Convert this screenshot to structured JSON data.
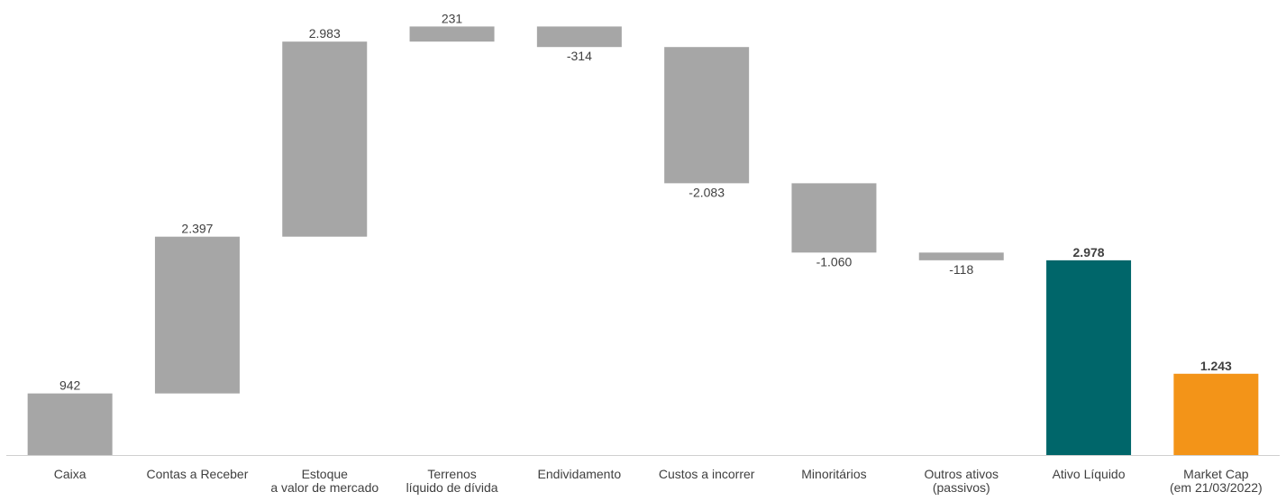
{
  "chart_data": {
    "type": "bar",
    "subtype": "waterfall",
    "categories": [
      [
        "Caixa"
      ],
      [
        "Contas a Receber"
      ],
      [
        "Estoque",
        "a valor de mercado"
      ],
      [
        "Terrenos",
        "líquido de dívida"
      ],
      [
        "Endividamento"
      ],
      [
        "Custos a incorrer"
      ],
      [
        "Minoritários"
      ],
      [
        "Outros ativos",
        "(passivos)"
      ],
      [
        "Ativo Líquido"
      ],
      [
        "Market Cap",
        "(em 21/03/2022)"
      ]
    ],
    "values": [
      942,
      2397,
      2983,
      231,
      -314,
      -2083,
      -1060,
      -118,
      2978,
      1243
    ],
    "value_labels": [
      "942",
      "2.397",
      "2.983",
      "231",
      "-314",
      "-2.083",
      "-1.060",
      "-118",
      "2.978",
      "1.243"
    ],
    "total_flags": [
      false,
      false,
      false,
      false,
      false,
      false,
      false,
      false,
      true,
      true
    ],
    "colors": [
      "#a6a6a6",
      "#a6a6a6",
      "#a6a6a6",
      "#a6a6a6",
      "#a6a6a6",
      "#a6a6a6",
      "#a6a6a6",
      "#a6a6a6",
      "#00666a",
      "#f39418"
    ],
    "label_color": "#404040",
    "axis_color": "#d0d0d0",
    "ylim": [
      0,
      6600
    ],
    "grid": false,
    "legend": "none"
  }
}
